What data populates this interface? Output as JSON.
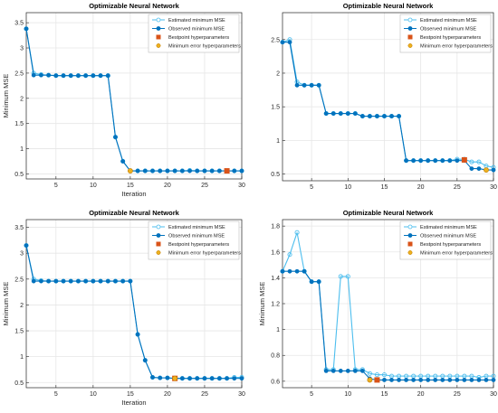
{
  "colors": {
    "estimated": "#4dbeee",
    "observed": "#0072bd",
    "bestpoint": "#d95319",
    "minerr": "#edb120",
    "grid": "#e6e6e6",
    "axis": "#262626"
  },
  "legend_labels": {
    "estimated": "Estimated minimum MSE",
    "observed": "Observed minimum MSE",
    "bestpoint": "Bestpoint hyperparameters",
    "minerr": "Minimum error hyperparameters"
  },
  "chart_data": [
    {
      "type": "line",
      "title": "Optimizable Neural Network",
      "xlabel": "Iteration",
      "ylabel": "Minimum MSE",
      "xlim": [
        1,
        30
      ],
      "ylim": [
        0.4,
        3.7
      ],
      "xticks": [
        5,
        10,
        15,
        20,
        25,
        30
      ],
      "yticks": [
        0.5,
        1,
        1.5,
        2,
        2.5,
        3,
        3.5
      ],
      "ytick_labels": [
        "0.5",
        "1",
        "1.5",
        "2",
        "2.5",
        "3",
        "3.5"
      ],
      "grid": true,
      "legend_position": "top-right",
      "x": [
        1,
        2,
        3,
        4,
        5,
        6,
        7,
        8,
        9,
        10,
        11,
        12,
        13,
        14,
        15,
        16,
        17,
        18,
        19,
        20,
        21,
        22,
        23,
        24,
        25,
        26,
        27,
        28,
        29,
        30
      ],
      "series": [
        {
          "key": "estimated",
          "values": [
            3.38,
            2.5,
            2.47,
            2.46,
            2.45,
            2.45,
            2.45,
            2.45,
            2.45,
            2.45,
            2.45,
            2.45,
            1.23,
            0.75,
            0.56,
            0.56,
            0.56,
            0.56,
            0.56,
            0.56,
            0.56,
            0.56,
            0.57,
            0.56,
            0.56,
            0.56,
            0.56,
            0.56,
            0.56,
            0.56
          ]
        },
        {
          "key": "observed",
          "values": [
            3.38,
            2.46,
            2.46,
            2.46,
            2.45,
            2.45,
            2.45,
            2.45,
            2.45,
            2.45,
            2.45,
            2.45,
            1.23,
            0.75,
            0.56,
            0.56,
            0.56,
            0.56,
            0.56,
            0.56,
            0.56,
            0.56,
            0.56,
            0.56,
            0.56,
            0.56,
            0.56,
            0.56,
            0.56,
            0.56
          ]
        }
      ],
      "bestpoint": {
        "x": 28,
        "y": 0.56
      },
      "minerr": {
        "x": 15,
        "y": 0.56
      }
    },
    {
      "type": "line",
      "title": "Optimizable Neural Network",
      "xlabel": "",
      "ylabel": "",
      "xlim": [
        1,
        30
      ],
      "ylim": [
        0.4,
        2.9
      ],
      "xticks": [
        5,
        10,
        15,
        20,
        25,
        30
      ],
      "yticks": [
        0.5,
        1,
        1.5,
        2,
        2.5
      ],
      "ytick_labels": [
        "0.5",
        "1",
        "1.5",
        "2",
        "2.5"
      ],
      "grid": true,
      "legend_position": "top-right",
      "x": [
        1,
        2,
        3,
        4,
        5,
        6,
        7,
        8,
        9,
        10,
        11,
        12,
        13,
        14,
        15,
        16,
        17,
        18,
        19,
        20,
        21,
        22,
        23,
        24,
        25,
        26,
        27,
        28,
        29,
        30
      ],
      "series": [
        {
          "key": "estimated",
          "values": [
            2.46,
            2.5,
            1.87,
            1.82,
            1.82,
            1.82,
            1.4,
            1.4,
            1.4,
            1.4,
            1.4,
            1.36,
            1.36,
            1.36,
            1.36,
            1.36,
            1.36,
            0.7,
            0.7,
            0.7,
            0.7,
            0.7,
            0.7,
            0.7,
            0.72,
            0.72,
            0.68,
            0.68,
            0.62,
            0.6
          ]
        },
        {
          "key": "observed",
          "values": [
            2.46,
            2.46,
            1.82,
            1.82,
            1.82,
            1.82,
            1.4,
            1.4,
            1.4,
            1.4,
            1.4,
            1.36,
            1.36,
            1.36,
            1.36,
            1.36,
            1.36,
            0.7,
            0.7,
            0.7,
            0.7,
            0.7,
            0.7,
            0.7,
            0.7,
            0.7,
            0.58,
            0.58,
            0.56,
            0.56
          ]
        }
      ],
      "bestpoint": {
        "x": 26,
        "y": 0.71
      },
      "minerr": {
        "x": 29,
        "y": 0.56
      }
    },
    {
      "type": "line",
      "title": "Optimizable Neural Network",
      "xlabel": "Iteration",
      "ylabel": "Minimum MSE",
      "xlim": [
        1,
        30
      ],
      "ylim": [
        0.4,
        3.65
      ],
      "xticks": [
        5,
        10,
        15,
        20,
        25,
        30
      ],
      "yticks": [
        0.5,
        1,
        1.5,
        2,
        2.5,
        3,
        3.5
      ],
      "ytick_labels": [
        "0.5",
        "1",
        "1.5",
        "2",
        "2.5",
        "3",
        "3.5"
      ],
      "grid": true,
      "legend_position": "top-right",
      "x": [
        1,
        2,
        3,
        4,
        5,
        6,
        7,
        8,
        9,
        10,
        11,
        12,
        13,
        14,
        15,
        16,
        17,
        18,
        19,
        20,
        21,
        22,
        23,
        24,
        25,
        26,
        27,
        28,
        29,
        30
      ],
      "series": [
        {
          "key": "estimated",
          "values": [
            3.15,
            2.5,
            2.47,
            2.46,
            2.46,
            2.46,
            2.46,
            2.46,
            2.46,
            2.46,
            2.46,
            2.46,
            2.46,
            2.46,
            2.46,
            1.43,
            0.93,
            0.6,
            0.59,
            0.59,
            0.58,
            0.58,
            0.58,
            0.58,
            0.58,
            0.58,
            0.58,
            0.58,
            0.6,
            0.6
          ]
        },
        {
          "key": "observed",
          "values": [
            3.15,
            2.46,
            2.46,
            2.46,
            2.46,
            2.46,
            2.46,
            2.46,
            2.46,
            2.46,
            2.46,
            2.46,
            2.46,
            2.46,
            2.46,
            1.43,
            0.93,
            0.6,
            0.59,
            0.59,
            0.58,
            0.58,
            0.58,
            0.58,
            0.58,
            0.58,
            0.58,
            0.58,
            0.58,
            0.58
          ]
        }
      ],
      "bestpoint": {
        "x": 21,
        "y": 0.58
      },
      "minerr": {
        "x": 21,
        "y": 0.58
      }
    },
    {
      "type": "line",
      "title": "Optimizable Neural Network",
      "xlabel": "",
      "ylabel": "Minimum MSE",
      "xlim": [
        1,
        30
      ],
      "ylim": [
        0.55,
        1.85
      ],
      "xticks": [
        5,
        10,
        15,
        20,
        25,
        30
      ],
      "yticks": [
        0.6,
        0.8,
        1,
        1.2,
        1.4,
        1.6,
        1.8
      ],
      "ytick_labels": [
        "0.6",
        "0.8",
        "1",
        "1.2",
        "1.4",
        "1.6",
        "1.8"
      ],
      "grid": true,
      "legend_position": "top-right",
      "x": [
        1,
        2,
        3,
        4,
        5,
        6,
        7,
        8,
        9,
        10,
        11,
        12,
        13,
        14,
        15,
        16,
        17,
        18,
        19,
        20,
        21,
        22,
        23,
        24,
        25,
        26,
        27,
        28,
        29,
        30
      ],
      "series": [
        {
          "key": "estimated",
          "values": [
            1.45,
            1.58,
            1.75,
            1.45,
            1.37,
            1.37,
            0.69,
            0.69,
            1.41,
            1.41,
            0.69,
            0.69,
            0.66,
            0.65,
            0.65,
            0.64,
            0.64,
            0.64,
            0.64,
            0.64,
            0.64,
            0.64,
            0.64,
            0.64,
            0.64,
            0.64,
            0.64,
            0.63,
            0.64,
            0.64
          ]
        },
        {
          "key": "observed",
          "values": [
            1.45,
            1.45,
            1.45,
            1.45,
            1.37,
            1.37,
            0.68,
            0.68,
            0.68,
            0.68,
            0.68,
            0.68,
            0.62,
            0.61,
            0.61,
            0.61,
            0.61,
            0.61,
            0.61,
            0.61,
            0.61,
            0.61,
            0.61,
            0.61,
            0.61,
            0.61,
            0.61,
            0.61,
            0.61,
            0.61
          ]
        }
      ],
      "bestpoint": {
        "x": 14,
        "y": 0.61
      },
      "minerr": {
        "x": 13,
        "y": 0.61
      }
    }
  ]
}
